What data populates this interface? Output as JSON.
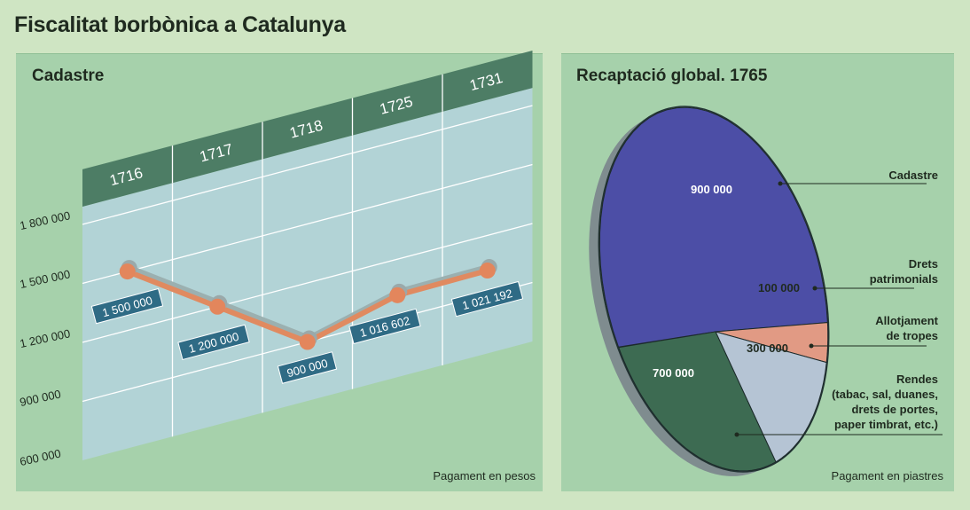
{
  "page": {
    "title": "Fiscalitat borbònica a Catalunya"
  },
  "chart_data": [
    {
      "type": "line",
      "title": "Cadastre",
      "footnote": "Pagament en pesos",
      "categories": [
        "1716",
        "1717",
        "1718",
        "1725",
        "1731"
      ],
      "series": [
        {
          "values": [
            1500000,
            1200000,
            900000,
            1016602,
            1021192
          ]
        }
      ],
      "data_labels": [
        "1 500 000",
        "1 200 000",
        "900 000",
        "1 016 602",
        "1 021 192"
      ],
      "y_ticks": [
        "1 800 000",
        "1 500 000",
        "1 200 000",
        "900 000",
        "600 000"
      ],
      "ylim": [
        600000,
        1800000
      ],
      "grid": true,
      "colors": {
        "line": "#e08a60",
        "marker": "#e3865c",
        "header": "#4d7d65",
        "plot": "#b2d3d6",
        "label_box": "#2f6b85"
      }
    },
    {
      "type": "pie",
      "title": "Recaptació global. 1765",
      "footnote": "Pagament en piastres",
      "slices": [
        {
          "label": "Cadastre",
          "value": 900000,
          "value_label": "900 000",
          "color": "#4c4ea6"
        },
        {
          "label": "Drets patrimonials",
          "value": 100000,
          "value_label": "100 000",
          "color": "#e19a84"
        },
        {
          "label": "Allotjament de tropes",
          "value": 300000,
          "value_label": "300 000",
          "color": "#b5c4d4"
        },
        {
          "label": "Rendes (tabac, sal, duanes, drets de portes, paper timbrat, etc.)",
          "value": 700000,
          "value_label": "700 000",
          "color": "#3d6b52"
        }
      ],
      "callouts": [
        {
          "lines": [
            "Cadastre"
          ]
        },
        {
          "lines": [
            "Drets",
            "patrimonials"
          ]
        },
        {
          "lines": [
            "Allotjament",
            "de tropes"
          ]
        },
        {
          "lines": [
            "Rendes",
            "(tabac, sal, duanes,",
            "drets de portes,",
            "paper timbrat, etc.)"
          ]
        }
      ]
    }
  ]
}
